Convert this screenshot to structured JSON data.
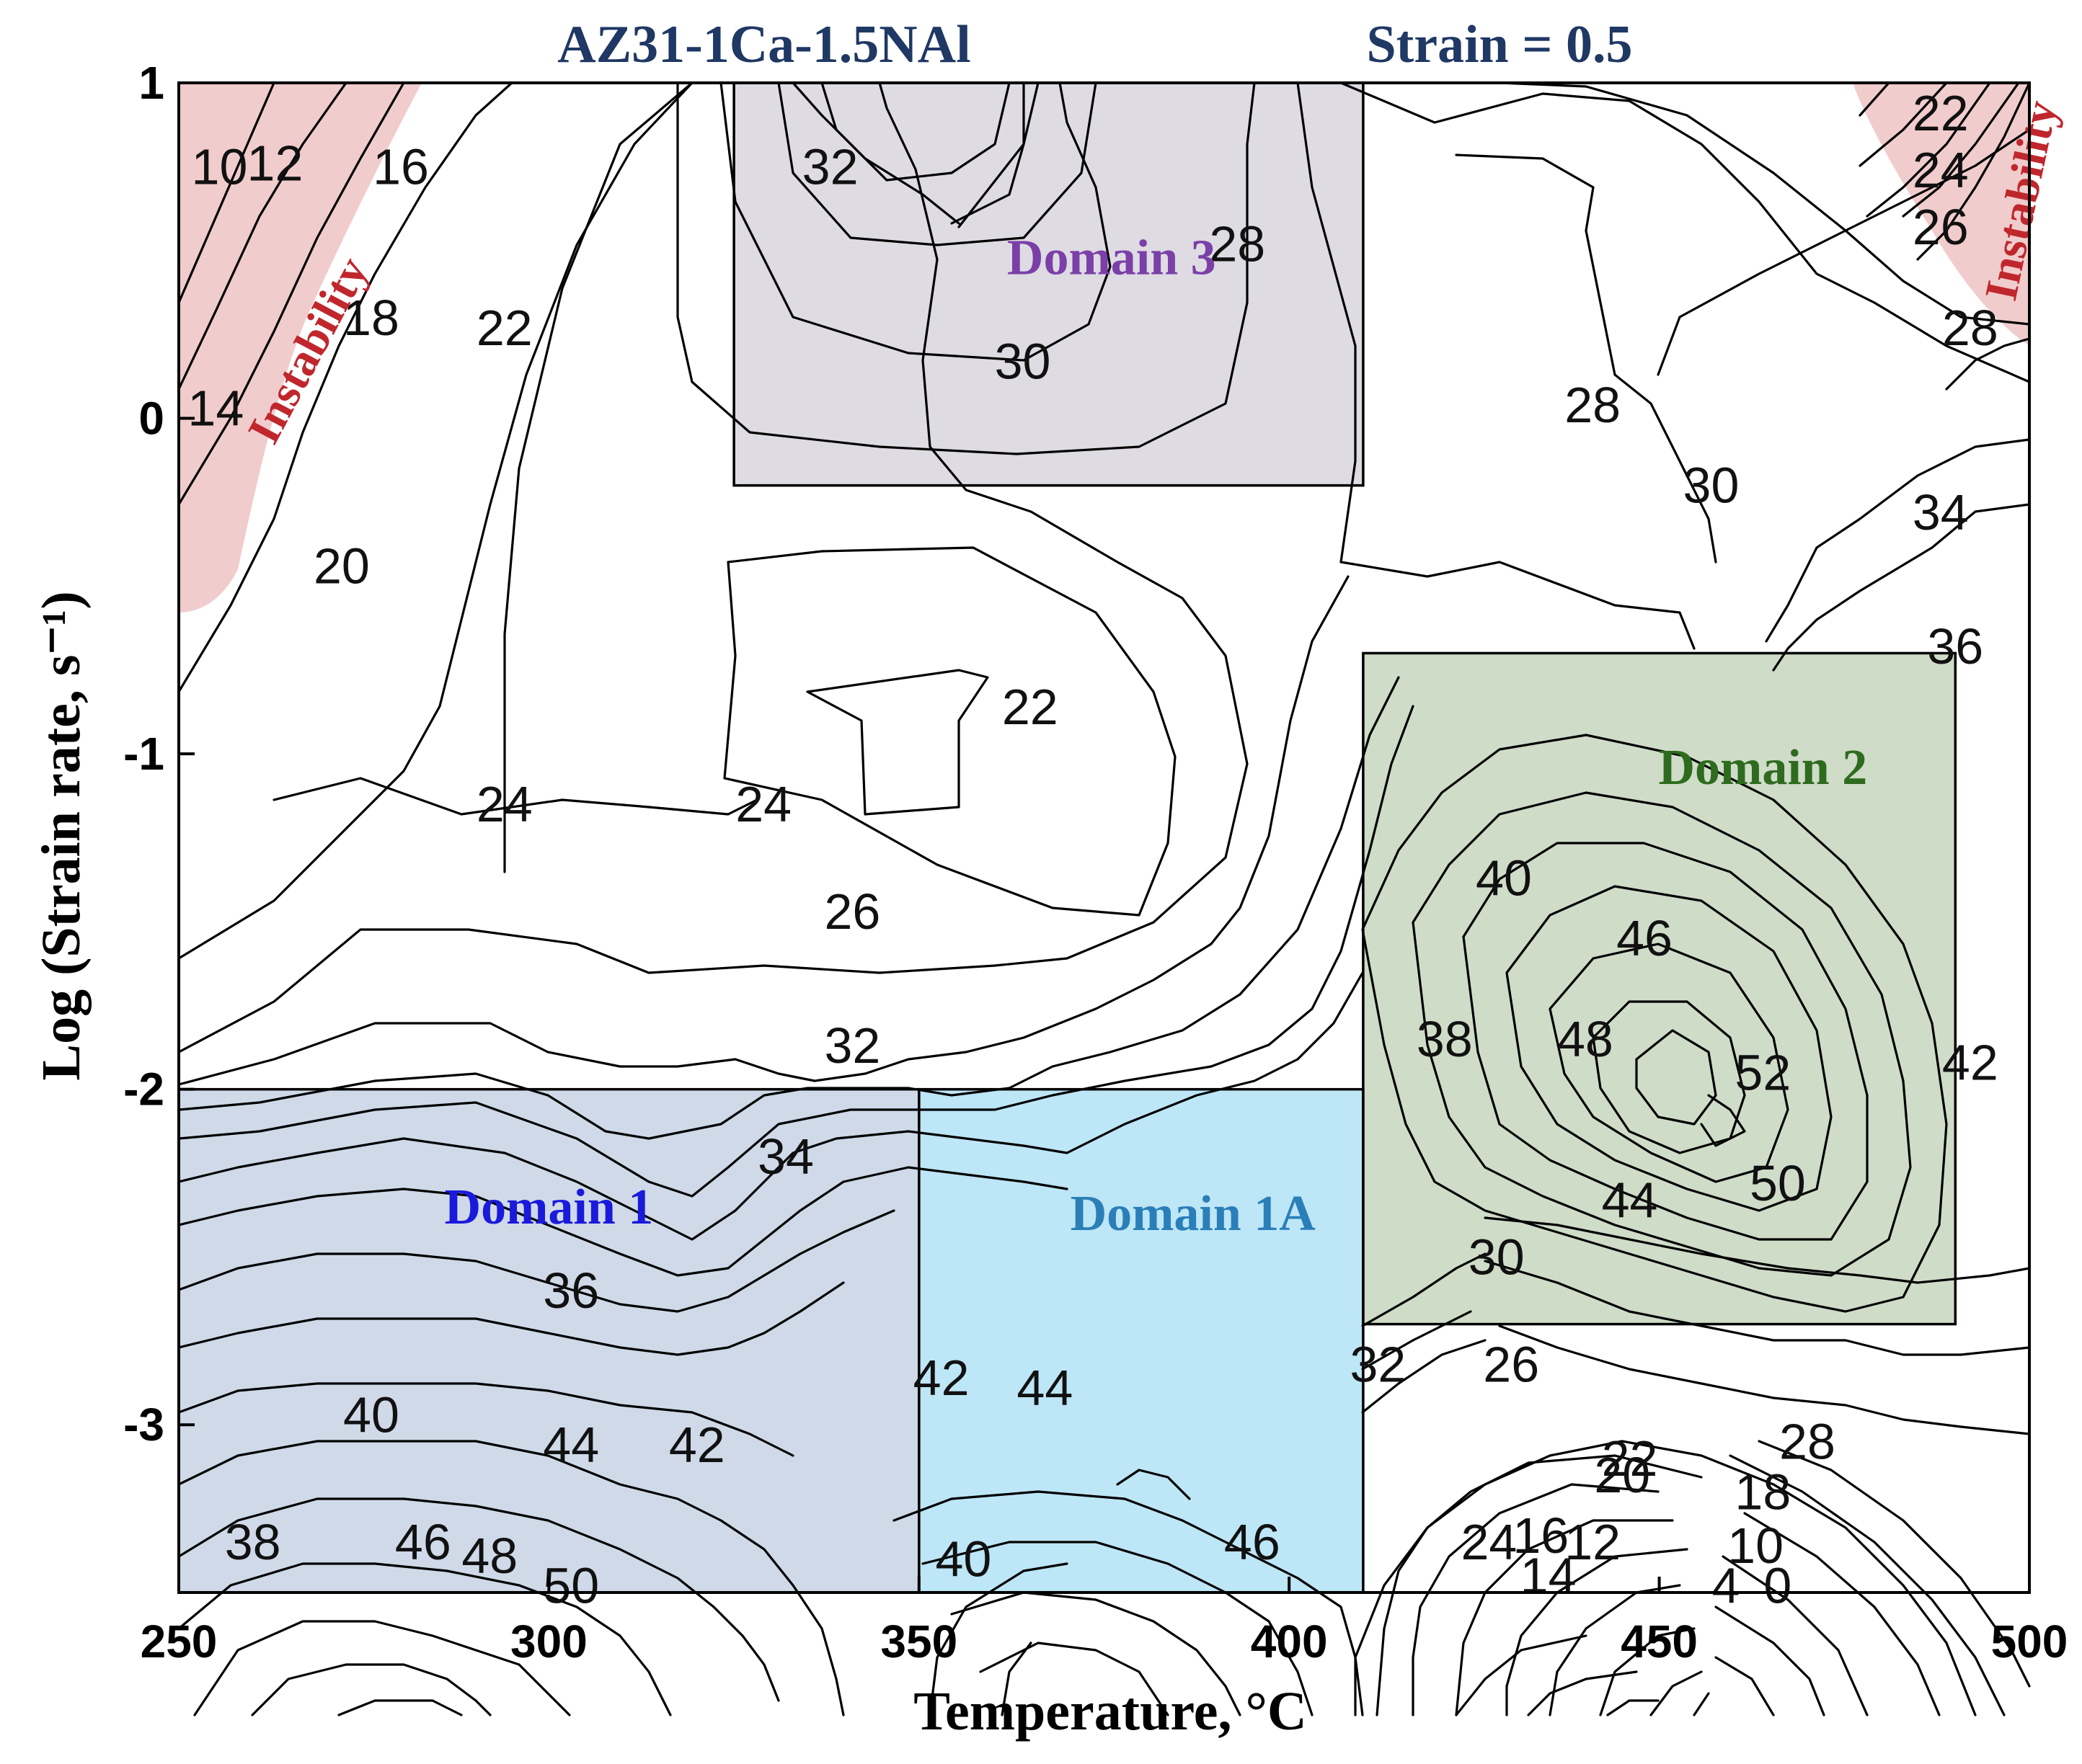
{
  "chart_data": {
    "type": "contour",
    "title_left": "AZ31-1Ca-1.5NAl",
    "title_right": "Strain = 0.5",
    "xlabel": "Temperature, °C",
    "ylabel": "Log (Strain rate, s⁻¹)",
    "xlim": [
      250,
      500
    ],
    "ylim": [
      -3.5,
      1
    ],
    "x_ticks": [
      "250",
      "300",
      "350",
      "400",
      "450",
      "500"
    ],
    "y_ticks": [
      "1",
      "0",
      "-1",
      "-2",
      "-3"
    ],
    "regions": [
      {
        "name": "Domain 1",
        "x": [
          250,
          350
        ],
        "y": [
          -3.5,
          -2
        ],
        "color": "#cfd9e8",
        "label_color": "#1a1adb"
      },
      {
        "name": "Domain 1A",
        "x": [
          350,
          410
        ],
        "y": [
          -3.5,
          -2
        ],
        "color": "#bde6f6",
        "label_color": "#2b7fb8"
      },
      {
        "name": "Domain 2",
        "x": [
          410,
          490
        ],
        "y": [
          -2.7,
          -0.7
        ],
        "color": "#cfdcc8",
        "label_color": "#2e6b1f"
      },
      {
        "name": "Domain 3",
        "x": [
          325,
          410
        ],
        "y": [
          -0.2,
          1
        ],
        "color": "#dedbe3",
        "label_color": "#7b3fa8"
      }
    ],
    "instability": {
      "label": "Instability",
      "color": "#f1cccc",
      "label_color": "#c0272d"
    },
    "contour_labels": [
      {
        "text": "10",
        "x": 255.5,
        "y": 0.75
      },
      {
        "text": "12",
        "x": 263,
        "y": 0.76
      },
      {
        "text": "16",
        "x": 280,
        "y": 0.75
      },
      {
        "text": "18",
        "x": 276,
        "y": 0.3
      },
      {
        "text": "14",
        "x": 255,
        "y": 0.03
      },
      {
        "text": "22",
        "x": 294,
        "y": 0.27
      },
      {
        "text": "20",
        "x": 272,
        "y": -0.44
      },
      {
        "text": "32",
        "x": 338,
        "y": 0.75
      },
      {
        "text": "28",
        "x": 393,
        "y": 0.52
      },
      {
        "text": "30",
        "x": 364,
        "y": 0.17
      },
      {
        "text": "28",
        "x": 441,
        "y": 0.04
      },
      {
        "text": "30",
        "x": 457,
        "y": -0.2
      },
      {
        "text": "22",
        "x": 488,
        "y": 0.91
      },
      {
        "text": "24",
        "x": 488,
        "y": 0.74
      },
      {
        "text": "26",
        "x": 488,
        "y": 0.57
      },
      {
        "text": "28",
        "x": 492,
        "y": 0.27
      },
      {
        "text": "34",
        "x": 488,
        "y": -0.28
      },
      {
        "text": "36",
        "x": 490,
        "y": -0.68
      },
      {
        "text": "22",
        "x": 365,
        "y": -0.86
      },
      {
        "text": "24",
        "x": 294,
        "y": -1.15
      },
      {
        "text": "24",
        "x": 329,
        "y": -1.15
      },
      {
        "text": "26",
        "x": 341,
        "y": -1.47
      },
      {
        "text": "32",
        "x": 341,
        "y": -1.87
      },
      {
        "text": "34",
        "x": 332,
        "y": -2.2
      },
      {
        "text": "36",
        "x": 303,
        "y": -2.6
      },
      {
        "text": "40",
        "x": 276,
        "y": -2.97
      },
      {
        "text": "44",
        "x": 303,
        "y": -3.06
      },
      {
        "text": "42",
        "x": 320,
        "y": -3.06
      },
      {
        "text": "38",
        "x": 260,
        "y": -3.35
      },
      {
        "text": "46",
        "x": 283,
        "y": -3.35
      },
      {
        "text": "48",
        "x": 292,
        "y": -3.39
      },
      {
        "text": "50",
        "x": 303,
        "y": -3.48
      },
      {
        "text": "42",
        "x": 353,
        "y": -2.86
      },
      {
        "text": "44",
        "x": 367,
        "y": -2.89
      },
      {
        "text": "46",
        "x": 395,
        "y": -3.35
      },
      {
        "text": "40",
        "x": 356,
        "y": -3.4
      },
      {
        "text": "40",
        "x": 429,
        "y": -1.37
      },
      {
        "text": "46",
        "x": 448,
        "y": -1.55
      },
      {
        "text": "38",
        "x": 421,
        "y": -1.85
      },
      {
        "text": "48",
        "x": 440,
        "y": -1.85
      },
      {
        "text": "52",
        "x": 464,
        "y": -1.95
      },
      {
        "text": "42",
        "x": 492,
        "y": -1.92
      },
      {
        "text": "44",
        "x": 446,
        "y": -2.33
      },
      {
        "text": "50",
        "x": 466,
        "y": -2.28
      },
      {
        "text": "30",
        "x": 428,
        "y": -2.5
      },
      {
        "text": "32",
        "x": 412,
        "y": -2.82
      },
      {
        "text": "26",
        "x": 430,
        "y": -2.82
      },
      {
        "text": "22",
        "x": 446,
        "y": -3.1
      },
      {
        "text": "20",
        "x": 445,
        "y": -3.15
      },
      {
        "text": "28",
        "x": 470,
        "y": -3.05
      },
      {
        "text": "18",
        "x": 464,
        "y": -3.2
      },
      {
        "text": "24",
        "x": 427,
        "y": -3.35
      },
      {
        "text": "16",
        "x": 434,
        "y": -3.33
      },
      {
        "text": "12",
        "x": 441,
        "y": -3.35
      },
      {
        "text": "10",
        "x": 463,
        "y": -3.36
      },
      {
        "text": "14",
        "x": 435,
        "y": -3.45
      },
      {
        "text": "4",
        "x": 459,
        "y": -3.48
      },
      {
        "text": "0",
        "x": 466,
        "y": -3.48
      }
    ]
  }
}
